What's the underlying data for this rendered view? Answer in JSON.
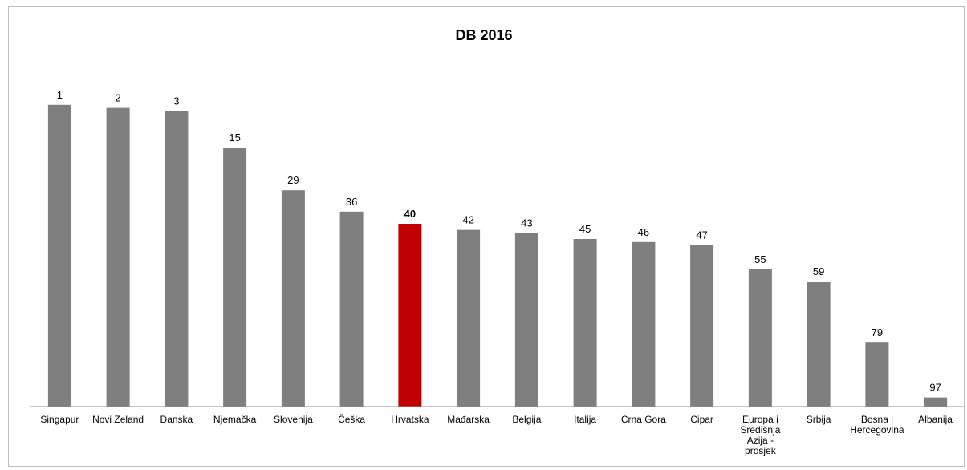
{
  "chart_data": {
    "type": "bar",
    "title": "DB 2016",
    "xlabel": "",
    "ylabel": "",
    "ylim": [
      0,
      100
    ],
    "y_axis": "inverted",
    "grid": false,
    "legend": "none",
    "categories": [
      [
        "Singapur"
      ],
      [
        "Novi Zeland"
      ],
      [
        "Danska"
      ],
      [
        "Njemačka"
      ],
      [
        "Slovenija"
      ],
      [
        "Češka"
      ],
      [
        "Hrvatska"
      ],
      [
        "Mađarska"
      ],
      [
        "Belgija"
      ],
      [
        "Italija"
      ],
      [
        "Crna Gora"
      ],
      [
        "Cipar"
      ],
      [
        "Europa i",
        "Središnja",
        "Azija -",
        "prosjek"
      ],
      [
        "Srbija"
      ],
      [
        "Bosna i",
        "Hercegovina"
      ],
      [
        "Albanija"
      ]
    ],
    "values": [
      1,
      2,
      3,
      15,
      29,
      36,
      40,
      42,
      43,
      45,
      46,
      47,
      55,
      59,
      79,
      97
    ],
    "highlight_index": 6,
    "colors": {
      "bar": "#7f7f7f",
      "highlight": "#c00000",
      "axis": "#8c8c8c"
    }
  }
}
